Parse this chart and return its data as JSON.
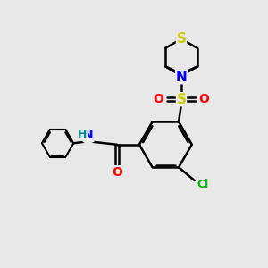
{
  "bg_color": "#e8e8e8",
  "bond_color": "#000000",
  "bond_width": 1.8,
  "atom_colors": {
    "S_thio": "#cccc00",
    "S_sulfonyl": "#cccc00",
    "N": "#0000ff",
    "O": "#ff0000",
    "Cl": "#00bb00",
    "H": "#008888"
  },
  "figsize": [
    3.0,
    3.0
  ],
  "dpi": 100
}
